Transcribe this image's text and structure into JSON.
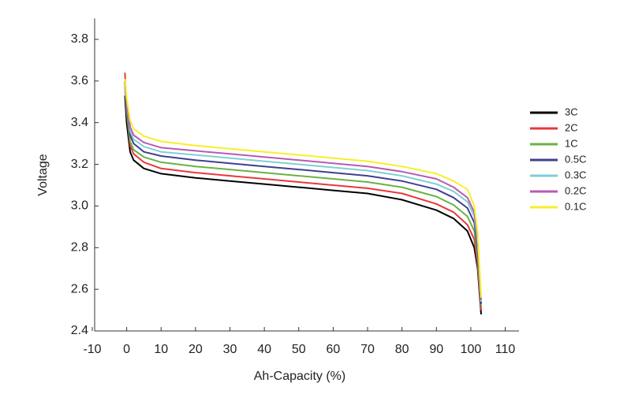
{
  "chart_data": {
    "type": "line",
    "x_label": "Ah-Capacity (%)",
    "y_label": "Voltage",
    "x": [
      -0.5,
      0,
      1,
      2,
      5,
      10,
      20,
      30,
      40,
      50,
      60,
      70,
      80,
      90,
      95,
      99,
      101,
      102,
      103
    ],
    "series": [
      {
        "name": "3C",
        "color": "#000000",
        "values": [
          3.53,
          3.4,
          3.26,
          3.22,
          3.18,
          3.155,
          3.135,
          3.12,
          3.105,
          3.09,
          3.075,
          3.06,
          3.03,
          2.98,
          2.94,
          2.88,
          2.8,
          2.7,
          2.48
        ]
      },
      {
        "name": "2C",
        "color": "#e8383d",
        "values": [
          3.64,
          3.45,
          3.29,
          3.25,
          3.21,
          3.18,
          3.16,
          3.145,
          3.13,
          3.115,
          3.1,
          3.085,
          3.06,
          3.01,
          2.97,
          2.91,
          2.84,
          2.72,
          2.5
        ]
      },
      {
        "name": "1C",
        "color": "#6ab244",
        "values": [
          3.57,
          3.46,
          3.31,
          3.27,
          3.235,
          3.21,
          3.19,
          3.175,
          3.16,
          3.145,
          3.13,
          3.115,
          3.09,
          3.045,
          3.005,
          2.95,
          2.88,
          2.76,
          2.52
        ]
      },
      {
        "name": "0.5C",
        "color": "#3f3f8f",
        "values": [
          3.6,
          3.48,
          3.34,
          3.3,
          3.26,
          3.24,
          3.22,
          3.205,
          3.19,
          3.175,
          3.16,
          3.145,
          3.12,
          3.08,
          3.04,
          2.99,
          2.92,
          2.79,
          2.53
        ]
      },
      {
        "name": "0.3C",
        "color": "#7fcfd6",
        "values": [
          3.58,
          3.49,
          3.36,
          3.32,
          3.285,
          3.26,
          3.245,
          3.23,
          3.215,
          3.2,
          3.185,
          3.17,
          3.145,
          3.105,
          3.07,
          3.02,
          2.95,
          2.82,
          2.54
        ]
      },
      {
        "name": "0.2C",
        "color": "#b95ab0",
        "values": [
          3.59,
          3.5,
          3.38,
          3.34,
          3.305,
          3.28,
          3.265,
          3.25,
          3.235,
          3.22,
          3.205,
          3.19,
          3.165,
          3.13,
          3.09,
          3.04,
          2.97,
          2.84,
          2.55
        ]
      },
      {
        "name": "0.1C",
        "color": "#f7ef2a",
        "values": [
          3.61,
          3.52,
          3.41,
          3.37,
          3.335,
          3.31,
          3.29,
          3.275,
          3.26,
          3.245,
          3.23,
          3.215,
          3.19,
          3.155,
          3.12,
          3.08,
          3.0,
          2.87,
          2.56
        ]
      }
    ],
    "xlim": [
      -10,
      114
    ],
    "xticks": [
      -10,
      0,
      10,
      20,
      30,
      40,
      50,
      60,
      70,
      80,
      90,
      100,
      110
    ],
    "ylim": [
      2.4,
      3.9
    ],
    "yticks": [
      2.4,
      2.6,
      2.8,
      {
        "value": 3,
        "label": "3.0"
      },
      3.2,
      3.4,
      3.6,
      3.8
    ],
    "grid": false,
    "legend": "right"
  }
}
